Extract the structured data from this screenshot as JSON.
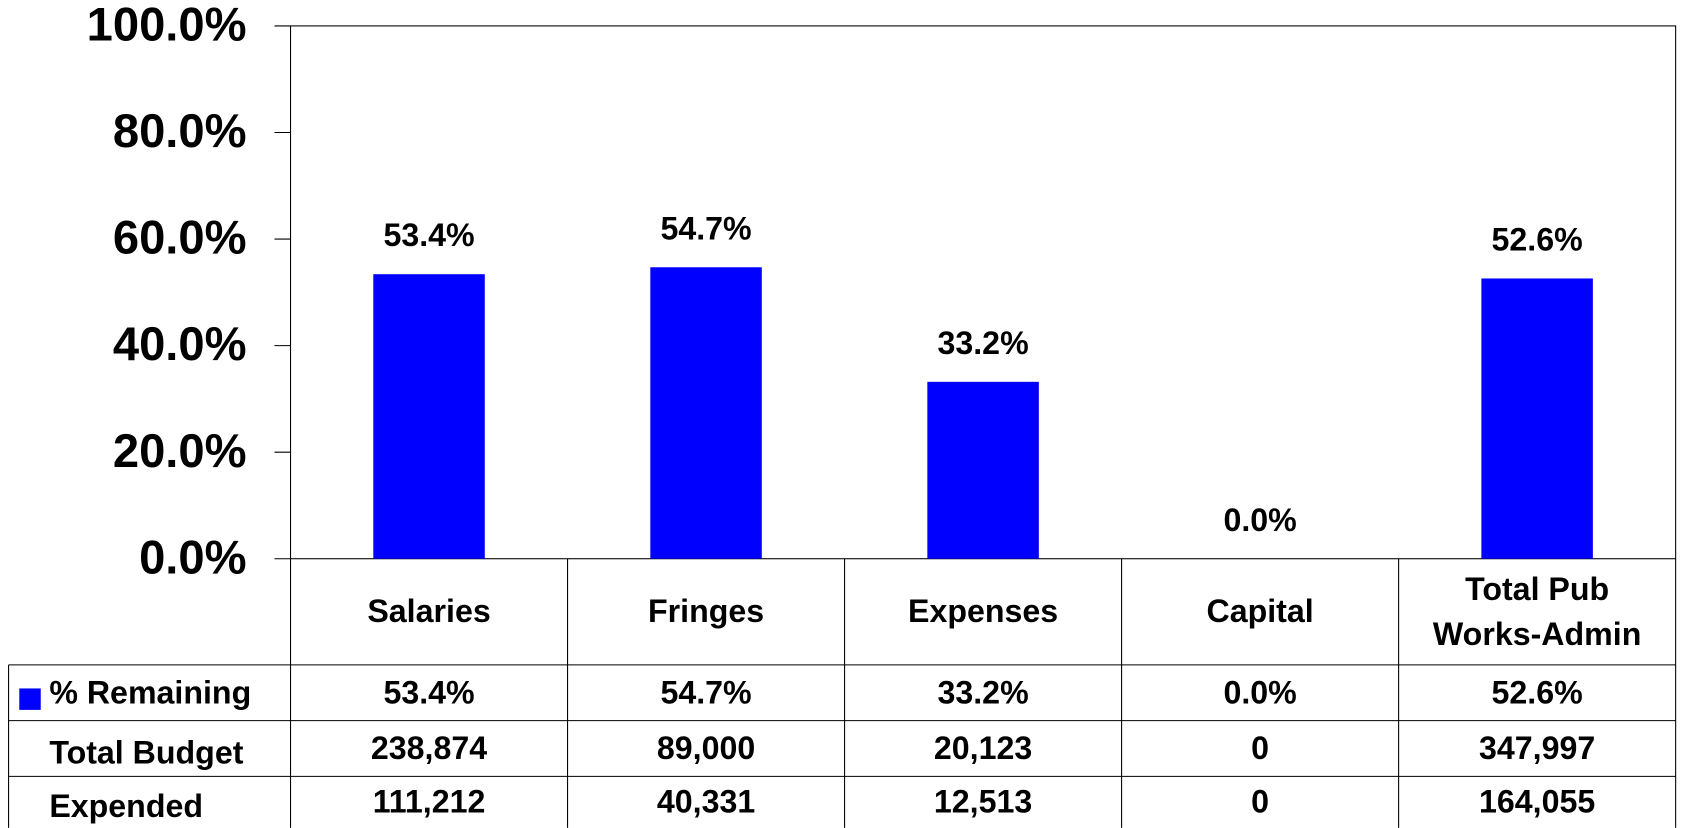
{
  "chart_data": {
    "type": "bar",
    "categories": [
      "Salaries",
      "Fringes",
      "Expenses",
      "Capital",
      "Total Pub Works-Admin"
    ],
    "series": [
      {
        "name": "% Remaining",
        "color": "#0000ff",
        "values": [
          53.4,
          54.7,
          33.2,
          0,
          52.6
        ],
        "value_labels": [
          "53.4%",
          "54.7%",
          "33.2%",
          "0.0%",
          "52.6%"
        ]
      }
    ],
    "table": [
      {
        "name": "Total Budget",
        "values": [
          238874,
          89000,
          20123,
          0,
          347997
        ],
        "value_labels": [
          "238,874",
          "89,000",
          "20,123",
          "0",
          "347,997"
        ]
      },
      {
        "name": "Expended",
        "values": [
          111212,
          40331,
          12513,
          0,
          164055
        ],
        "value_labels": [
          "111,212",
          "40,331",
          "12,513",
          "0",
          "164,055"
        ]
      }
    ],
    "ylim": [
      0,
      100
    ],
    "yticks": [
      {
        "value": 0,
        "label": "0.0%"
      },
      {
        "value": 20,
        "label": "20.0%"
      },
      {
        "value": 40,
        "label": "40.0%"
      },
      {
        "value": 60,
        "label": "60.0%"
      },
      {
        "value": 80,
        "label": "80.0%"
      },
      {
        "value": 100,
        "label": "100.0%"
      }
    ]
  }
}
